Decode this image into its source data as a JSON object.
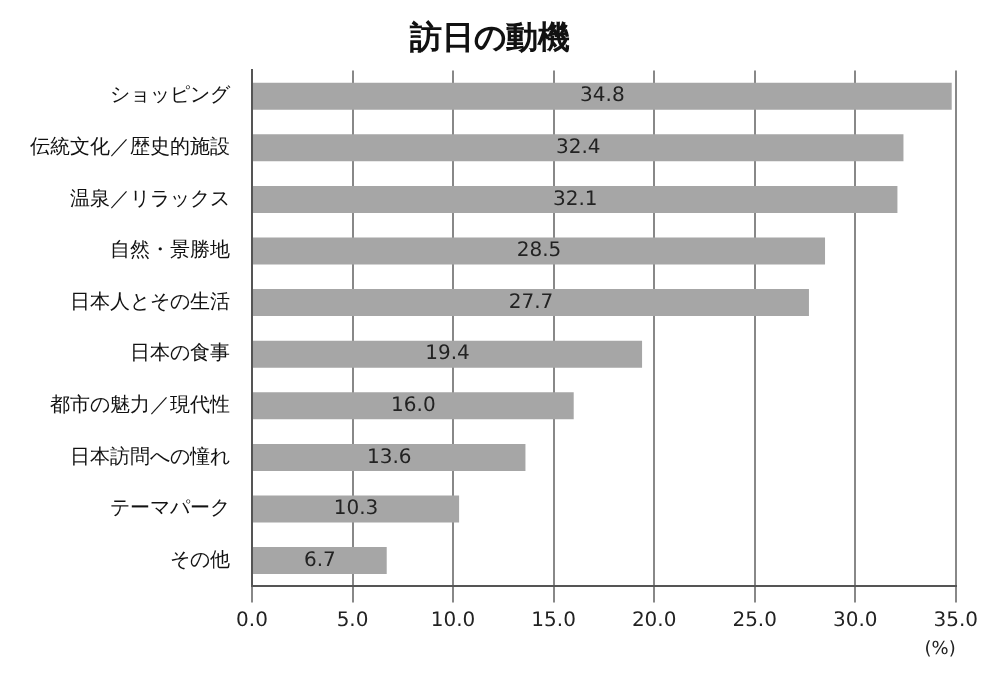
{
  "chart_data": {
    "type": "bar",
    "orientation": "horizontal",
    "title": "訪日の動機",
    "xlabel": "(%)",
    "categories": [
      "ショッピング",
      "伝統文化／歴史的施設",
      "温泉／リラックス",
      "自然・景勝地",
      "日本人とその生活",
      "日本の食事",
      "都市の魅力／現代性",
      "日本訪問への憧れ",
      "テーマパーク",
      "その他"
    ],
    "values": [
      34.8,
      32.4,
      32.1,
      28.5,
      27.7,
      19.4,
      16.0,
      13.6,
      10.3,
      6.7
    ],
    "value_labels": [
      "34.8",
      "32.4",
      "32.1",
      "28.5",
      "27.7",
      "19.4",
      "16.0",
      "13.6",
      "10.3",
      "6.7"
    ],
    "color": "#a6a6a6",
    "xlim": [
      0,
      35
    ],
    "xticks": [
      {
        "value": 0,
        "label": "0.0"
      },
      {
        "value": 5,
        "label": "5.0"
      },
      {
        "value": 10,
        "label": "10.0"
      },
      {
        "value": 15,
        "label": "15.0"
      },
      {
        "value": 20,
        "label": "20.0"
      },
      {
        "value": 25,
        "label": "25.0"
      },
      {
        "value": 30,
        "label": "30.0"
      },
      {
        "value": 35,
        "label": "35.0"
      }
    ],
    "grid": "x",
    "legend": false
  }
}
